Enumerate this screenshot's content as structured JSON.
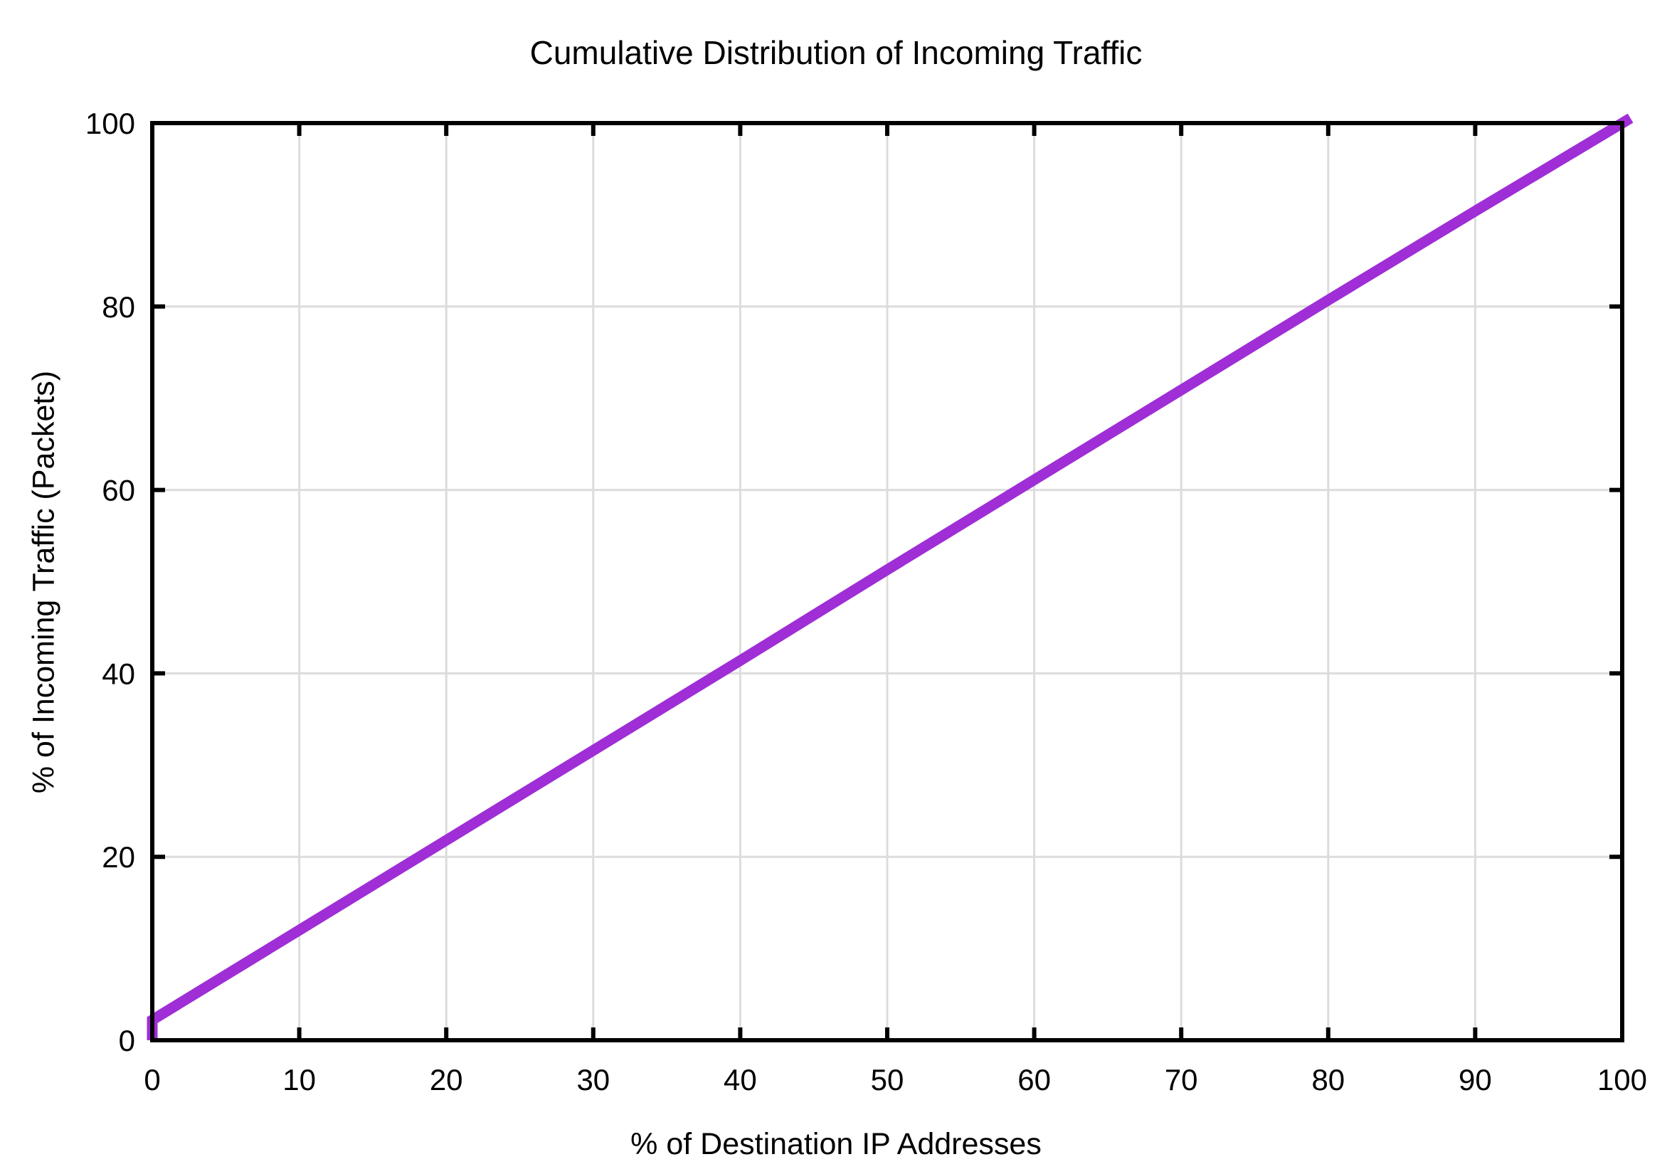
{
  "page": {
    "background_color": "#FFFFFF"
  },
  "chart_data": {
    "type": "line",
    "title": "Cumulative Distribution of Incoming Traffic",
    "xlabel": "% of Destination IP Addresses",
    "ylabel": "% of Incoming Traffic (Packets)",
    "xlim": [
      0,
      100
    ],
    "ylim": [
      0,
      100
    ],
    "x_ticks": [
      0,
      10,
      20,
      30,
      40,
      50,
      60,
      70,
      80,
      90,
      100
    ],
    "y_ticks": [
      0,
      20,
      40,
      60,
      80,
      100
    ],
    "grid": true,
    "legend": null,
    "axis_color": "#000000",
    "grid_color": "#DCDCDC",
    "tick_label_color": "#000000",
    "series": [
      {
        "name": "incoming-traffic-cdf",
        "color": "#9F2ED6",
        "line_width": 15,
        "points": [
          [
            0,
            0
          ],
          [
            0,
            2.2
          ],
          [
            10,
            12.0
          ],
          [
            20,
            21.8
          ],
          [
            30,
            31.6
          ],
          [
            40,
            41.4
          ],
          [
            50,
            51.3
          ],
          [
            60,
            61.1
          ],
          [
            70,
            70.9
          ],
          [
            80,
            80.7
          ],
          [
            90,
            90.4
          ],
          [
            100,
            100
          ]
        ]
      }
    ]
  }
}
